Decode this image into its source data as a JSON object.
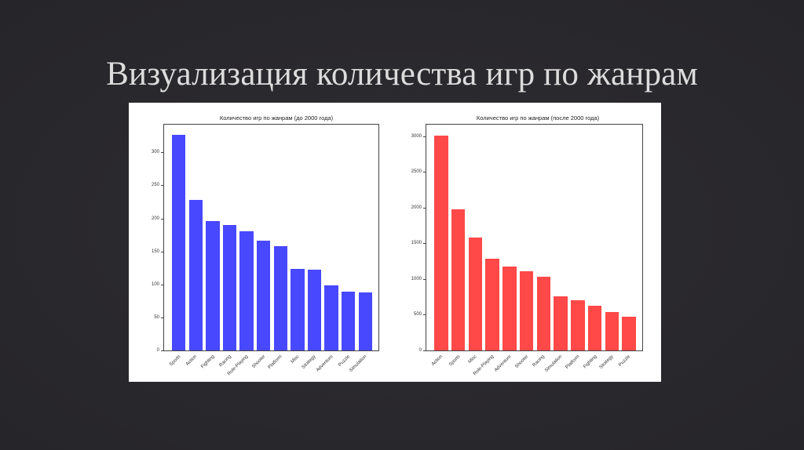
{
  "slide": {
    "title": "Визуализация количества игр по жанрам",
    "background": "#2a292d"
  },
  "chart_data": [
    {
      "type": "bar",
      "title": "Количество игр по жанрам (до 2000 года)",
      "xlabel": "",
      "ylabel": "",
      "color": "#4848ff",
      "categories": [
        "Sports",
        "Action",
        "Fighting",
        "Racing",
        "Role-Playing",
        "Shooter",
        "Platform",
        "Misc",
        "Strategy",
        "Adventure",
        "Puzzle",
        "Simulation"
      ],
      "values": [
        326,
        228,
        196,
        190,
        180,
        166,
        158,
        123,
        122,
        98,
        89,
        88
      ],
      "yticks": [
        0,
        50,
        100,
        150,
        200,
        250,
        300
      ],
      "ylim": [
        0,
        342
      ],
      "grid": false,
      "legend": null
    },
    {
      "type": "bar",
      "title": "Количество игр по жанрам (после 2000 года)",
      "xlabel": "",
      "ylabel": "",
      "color": "#ff4848",
      "categories": [
        "Action",
        "Sports",
        "Misc",
        "Role-Playing",
        "Adventure",
        "Shooter",
        "Racing",
        "Simulation",
        "Platform",
        "Fighting",
        "Strategy",
        "Puzzle"
      ],
      "values": [
        3010,
        1970,
        1585,
        1280,
        1170,
        1105,
        1030,
        755,
        700,
        625,
        535,
        470
      ],
      "yticks": [
        0,
        500,
        1000,
        1500,
        2000,
        2500,
        3000
      ],
      "ylim": [
        0,
        3160
      ],
      "grid": false,
      "legend": null
    }
  ]
}
